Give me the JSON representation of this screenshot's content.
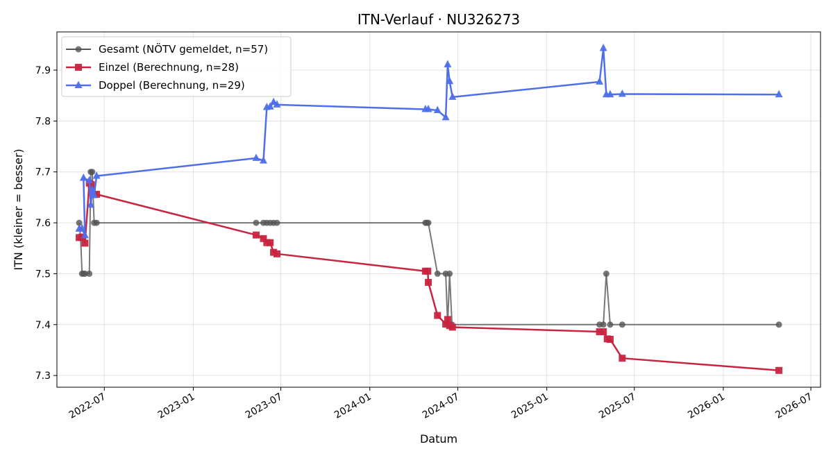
{
  "chart_data": {
    "type": "line",
    "title": "ITN-Verlauf · NU326273",
    "xlabel": "Datum",
    "ylabel": "ITN  (kleiner = besser)",
    "x_axis_type": "date",
    "xlim": [
      "2022-03-25",
      "2026-07-21"
    ],
    "ylim": [
      7.277,
      7.975
    ],
    "y_ticks": [
      7.3,
      7.4,
      7.5,
      7.6,
      7.7,
      7.8,
      7.9
    ],
    "y_tick_labels": [
      "7.3",
      "7.4",
      "7.5",
      "7.6",
      "7.7",
      "7.8",
      "7.9"
    ],
    "x_ticks": [
      "2022-07-01",
      "2023-01-01",
      "2023-07-01",
      "2024-01-01",
      "2024-07-01",
      "2025-01-01",
      "2025-07-01",
      "2026-01-01",
      "2026-07-01"
    ],
    "x_tick_labels": [
      "2022-07",
      "2023-01",
      "2023-07",
      "2024-01",
      "2024-07",
      "2025-01",
      "2025-07",
      "2026-01",
      "2026-07"
    ],
    "grid": true,
    "legend_position": "upper-left",
    "series": [
      {
        "name": "Gesamt (NÖTV gemeldet, n=57)",
        "color": "#555555",
        "marker": "circle",
        "points": [
          [
            "2022-05-10",
            7.6
          ],
          [
            "2022-05-13",
            7.57
          ],
          [
            "2022-05-16",
            7.5
          ],
          [
            "2022-05-19",
            7.5
          ],
          [
            "2022-05-22",
            7.5
          ],
          [
            "2022-05-31",
            7.5
          ],
          [
            "2022-06-03",
            7.7
          ],
          [
            "2022-06-06",
            7.7
          ],
          [
            "2022-06-10",
            7.6
          ],
          [
            "2022-06-15",
            7.6
          ],
          [
            "2023-05-11",
            7.6
          ],
          [
            "2023-05-26",
            7.6
          ],
          [
            "2023-06-02",
            7.6
          ],
          [
            "2023-06-09",
            7.6
          ],
          [
            "2023-06-16",
            7.6
          ],
          [
            "2023-06-23",
            7.6
          ],
          [
            "2024-04-25",
            7.6
          ],
          [
            "2024-04-28",
            7.6
          ],
          [
            "2024-05-01",
            7.6
          ],
          [
            "2024-05-20",
            7.5
          ],
          [
            "2024-06-06",
            7.5
          ],
          [
            "2024-06-10",
            7.4
          ],
          [
            "2024-06-14",
            7.5
          ],
          [
            "2024-06-19",
            7.4
          ],
          [
            "2025-04-20",
            7.4
          ],
          [
            "2025-04-28",
            7.4
          ],
          [
            "2025-05-04",
            7.5
          ],
          [
            "2025-05-12",
            7.4
          ],
          [
            "2025-06-06",
            7.4
          ],
          [
            "2026-04-26",
            7.4
          ]
        ]
      },
      {
        "name": "Einzel (Berechnung, n=28)",
        "color": "#C8243F",
        "marker": "square",
        "points": [
          [
            "2022-05-10",
            7.571
          ],
          [
            "2022-05-16",
            7.572
          ],
          [
            "2022-05-22",
            7.56
          ],
          [
            "2022-05-31",
            7.678
          ],
          [
            "2022-06-04",
            7.675
          ],
          [
            "2022-06-15",
            7.656
          ],
          [
            "2023-05-11",
            7.576
          ],
          [
            "2023-05-26",
            7.569
          ],
          [
            "2023-06-02",
            7.561
          ],
          [
            "2023-06-09",
            7.561
          ],
          [
            "2023-06-16",
            7.542
          ],
          [
            "2023-06-23",
            7.539
          ],
          [
            "2024-04-25",
            7.505
          ],
          [
            "2024-04-30",
            7.505
          ],
          [
            "2024-05-01",
            7.483
          ],
          [
            "2024-05-20",
            7.418
          ],
          [
            "2024-06-06",
            7.401
          ],
          [
            "2024-06-10",
            7.41
          ],
          [
            "2024-06-14",
            7.398
          ],
          [
            "2024-06-20",
            7.395
          ],
          [
            "2025-04-20",
            7.386
          ],
          [
            "2025-04-28",
            7.386
          ],
          [
            "2025-05-06",
            7.372
          ],
          [
            "2025-05-12",
            7.371
          ],
          [
            "2025-06-06",
            7.334
          ],
          [
            "2026-04-26",
            7.31
          ]
        ]
      },
      {
        "name": "Doppel (Berechnung, n=29)",
        "color": "#4F6FEA",
        "marker": "triangle",
        "points": [
          [
            "2022-05-10",
            7.588
          ],
          [
            "2022-05-16",
            7.589
          ],
          [
            "2022-05-22",
            7.575
          ],
          [
            "2022-05-19",
            7.688
          ],
          [
            "2022-05-31",
            7.683
          ],
          [
            "2022-06-03",
            7.635
          ],
          [
            "2022-06-06",
            7.665
          ],
          [
            "2022-06-10",
            7.654
          ],
          [
            "2022-06-15",
            7.692
          ],
          [
            "2023-05-11",
            7.727
          ],
          [
            "2023-05-26",
            7.722
          ],
          [
            "2023-06-02",
            7.827
          ],
          [
            "2023-06-09",
            7.828
          ],
          [
            "2023-06-16",
            7.837
          ],
          [
            "2023-06-23",
            7.832
          ],
          [
            "2024-04-25",
            7.823
          ],
          [
            "2024-05-01",
            7.823
          ],
          [
            "2024-05-20",
            7.821
          ],
          [
            "2024-06-06",
            7.807
          ],
          [
            "2024-06-10",
            7.911
          ],
          [
            "2024-06-14",
            7.878
          ],
          [
            "2024-06-20",
            7.847
          ],
          [
            "2025-04-20",
            7.877
          ],
          [
            "2025-04-28",
            7.943
          ],
          [
            "2025-05-04",
            7.852
          ],
          [
            "2025-05-12",
            7.852
          ],
          [
            "2025-06-06",
            7.853
          ],
          [
            "2026-04-26",
            7.852
          ]
        ]
      }
    ]
  }
}
